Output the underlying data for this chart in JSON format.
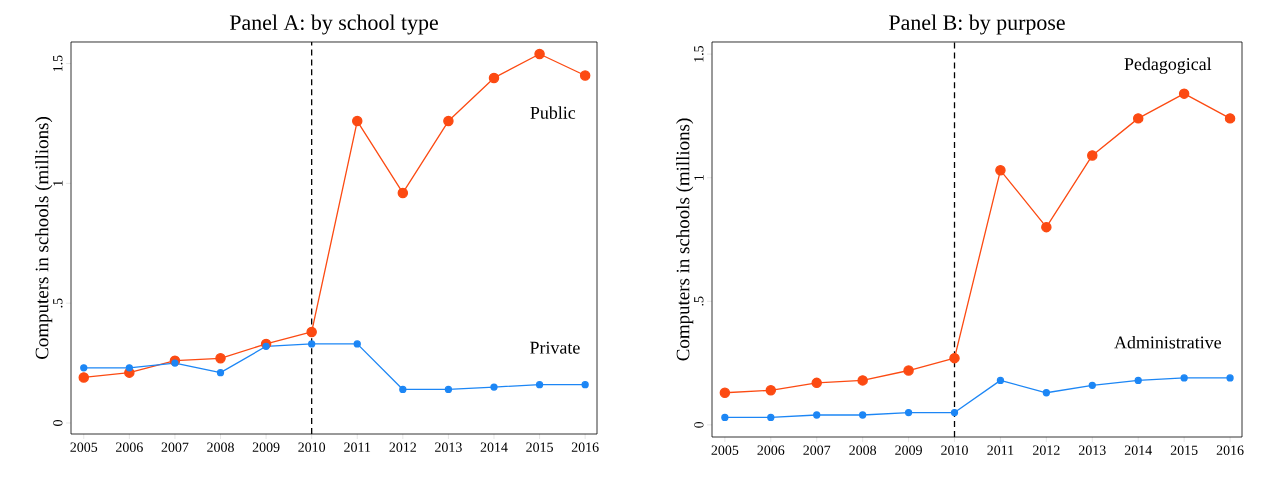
{
  "chart_data": [
    {
      "type": "line",
      "title": "Panel A: by school type",
      "ylabel": "Computers in schools (millions)",
      "marker": "circle",
      "x": [
        2005,
        2006,
        2007,
        2008,
        2009,
        2010,
        2011,
        2012,
        2013,
        2014,
        2015,
        2016
      ],
      "series": [
        {
          "name": "Public",
          "color": "#fc4a12",
          "values": [
            0.19,
            0.21,
            0.26,
            0.27,
            0.33,
            0.38,
            1.26,
            0.96,
            1.26,
            1.44,
            1.54,
            1.45
          ]
        },
        {
          "name": "Private",
          "color": "#1c86f5",
          "values": [
            0.23,
            0.23,
            0.25,
            0.21,
            0.32,
            0.33,
            0.33,
            0.14,
            0.14,
            0.15,
            0.16,
            0.16
          ]
        }
      ],
      "xlim": [
        2004.72,
        2016.26
      ],
      "ylim": [
        -0.046,
        1.59
      ],
      "xticks": [
        2005,
        2006,
        2007,
        2008,
        2009,
        2010,
        2011,
        2012,
        2013,
        2014,
        2015,
        2016
      ],
      "yticks": [
        0,
        {
          "value": 0.5,
          "label": ".5"
        },
        1,
        1.5
      ],
      "ref_lines": [
        {
          "axis": "x",
          "value": 2010,
          "color": "#000000",
          "line_style": "dashed"
        }
      ]
    },
    {
      "type": "line",
      "title": "Panel B: by purpose",
      "ylabel": "Computers in schools (millions)",
      "marker": "circle",
      "x": [
        2005,
        2006,
        2007,
        2008,
        2009,
        2010,
        2011,
        2012,
        2013,
        2014,
        2015,
        2016
      ],
      "series": [
        {
          "name": "Pedagogical",
          "color": "#fc4a12",
          "values": [
            0.13,
            0.14,
            0.17,
            0.18,
            0.22,
            0.27,
            1.03,
            0.8,
            1.09,
            1.24,
            1.34,
            1.24
          ]
        },
        {
          "name": "Administrative",
          "color": "#1c86f5",
          "values": [
            0.03,
            0.03,
            0.04,
            0.04,
            0.05,
            0.05,
            0.18,
            0.13,
            0.16,
            0.18,
            0.19,
            0.19
          ]
        }
      ],
      "xlim": [
        2004.72,
        2016.26
      ],
      "ylim": [
        -0.049,
        1.549
      ],
      "xticks": [
        2005,
        2006,
        2007,
        2008,
        2009,
        2010,
        2011,
        2012,
        2013,
        2014,
        2015,
        2016
      ],
      "yticks": [
        0,
        {
          "value": 0.5,
          "label": ".5"
        },
        1,
        1.5
      ],
      "ref_lines": [
        {
          "axis": "x",
          "value": 2010,
          "color": "#000000",
          "line_style": "dashed"
        }
      ]
    }
  ]
}
